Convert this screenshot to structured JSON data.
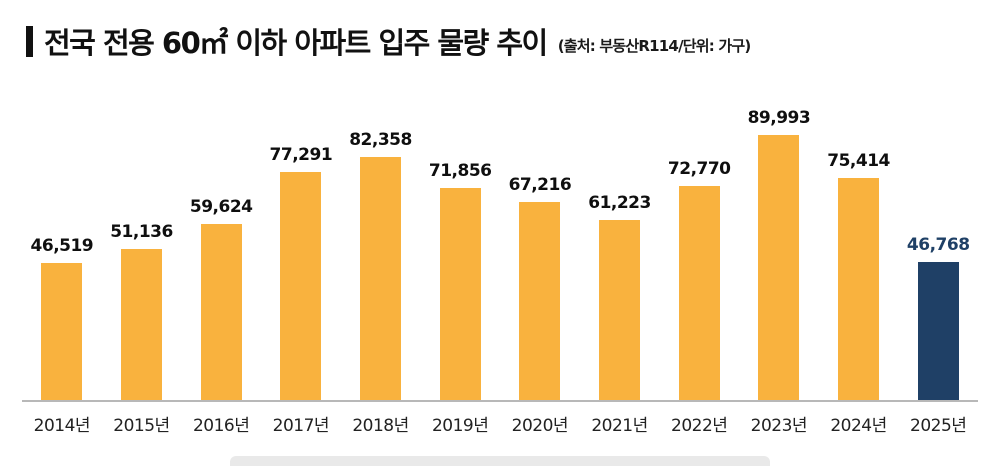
{
  "header": {
    "title": "전국 전용 60㎡ 이하 아파트 입주 물량 추이",
    "source_note": "(출처: 부동산R114/단위: 가구)"
  },
  "chart_data": {
    "type": "bar",
    "title": "전국 전용 60㎡ 이하 아파트 입주 물량 추이",
    "source": "(출처: 부동산R114/단위: 가구)",
    "categories": [
      "2014년",
      "2015년",
      "2016년",
      "2017년",
      "2018년",
      "2019년",
      "2020년",
      "2021년",
      "2022년",
      "2023년",
      "2024년",
      "2025년"
    ],
    "values": [
      46519,
      51136,
      59624,
      77291,
      82358,
      71856,
      67216,
      61223,
      72770,
      89993,
      75414,
      46768
    ],
    "value_labels": [
      "46,519",
      "51,136",
      "59,624",
      "77,291",
      "82,358",
      "71,856",
      "67,216",
      "61,223",
      "72,770",
      "89,993",
      "75,414",
      "46,768"
    ],
    "xlabel": "",
    "ylabel": "가구",
    "ylim": [
      0,
      95000
    ],
    "grid": false,
    "legend": "none",
    "bar_color": "#F9B23E",
    "label_color": "#0F0F0F",
    "axis_line_color": "#B8B8B8",
    "highlight": {
      "index": 11,
      "bar_color": "#1F4066",
      "label_color": "#1F4066"
    }
  }
}
